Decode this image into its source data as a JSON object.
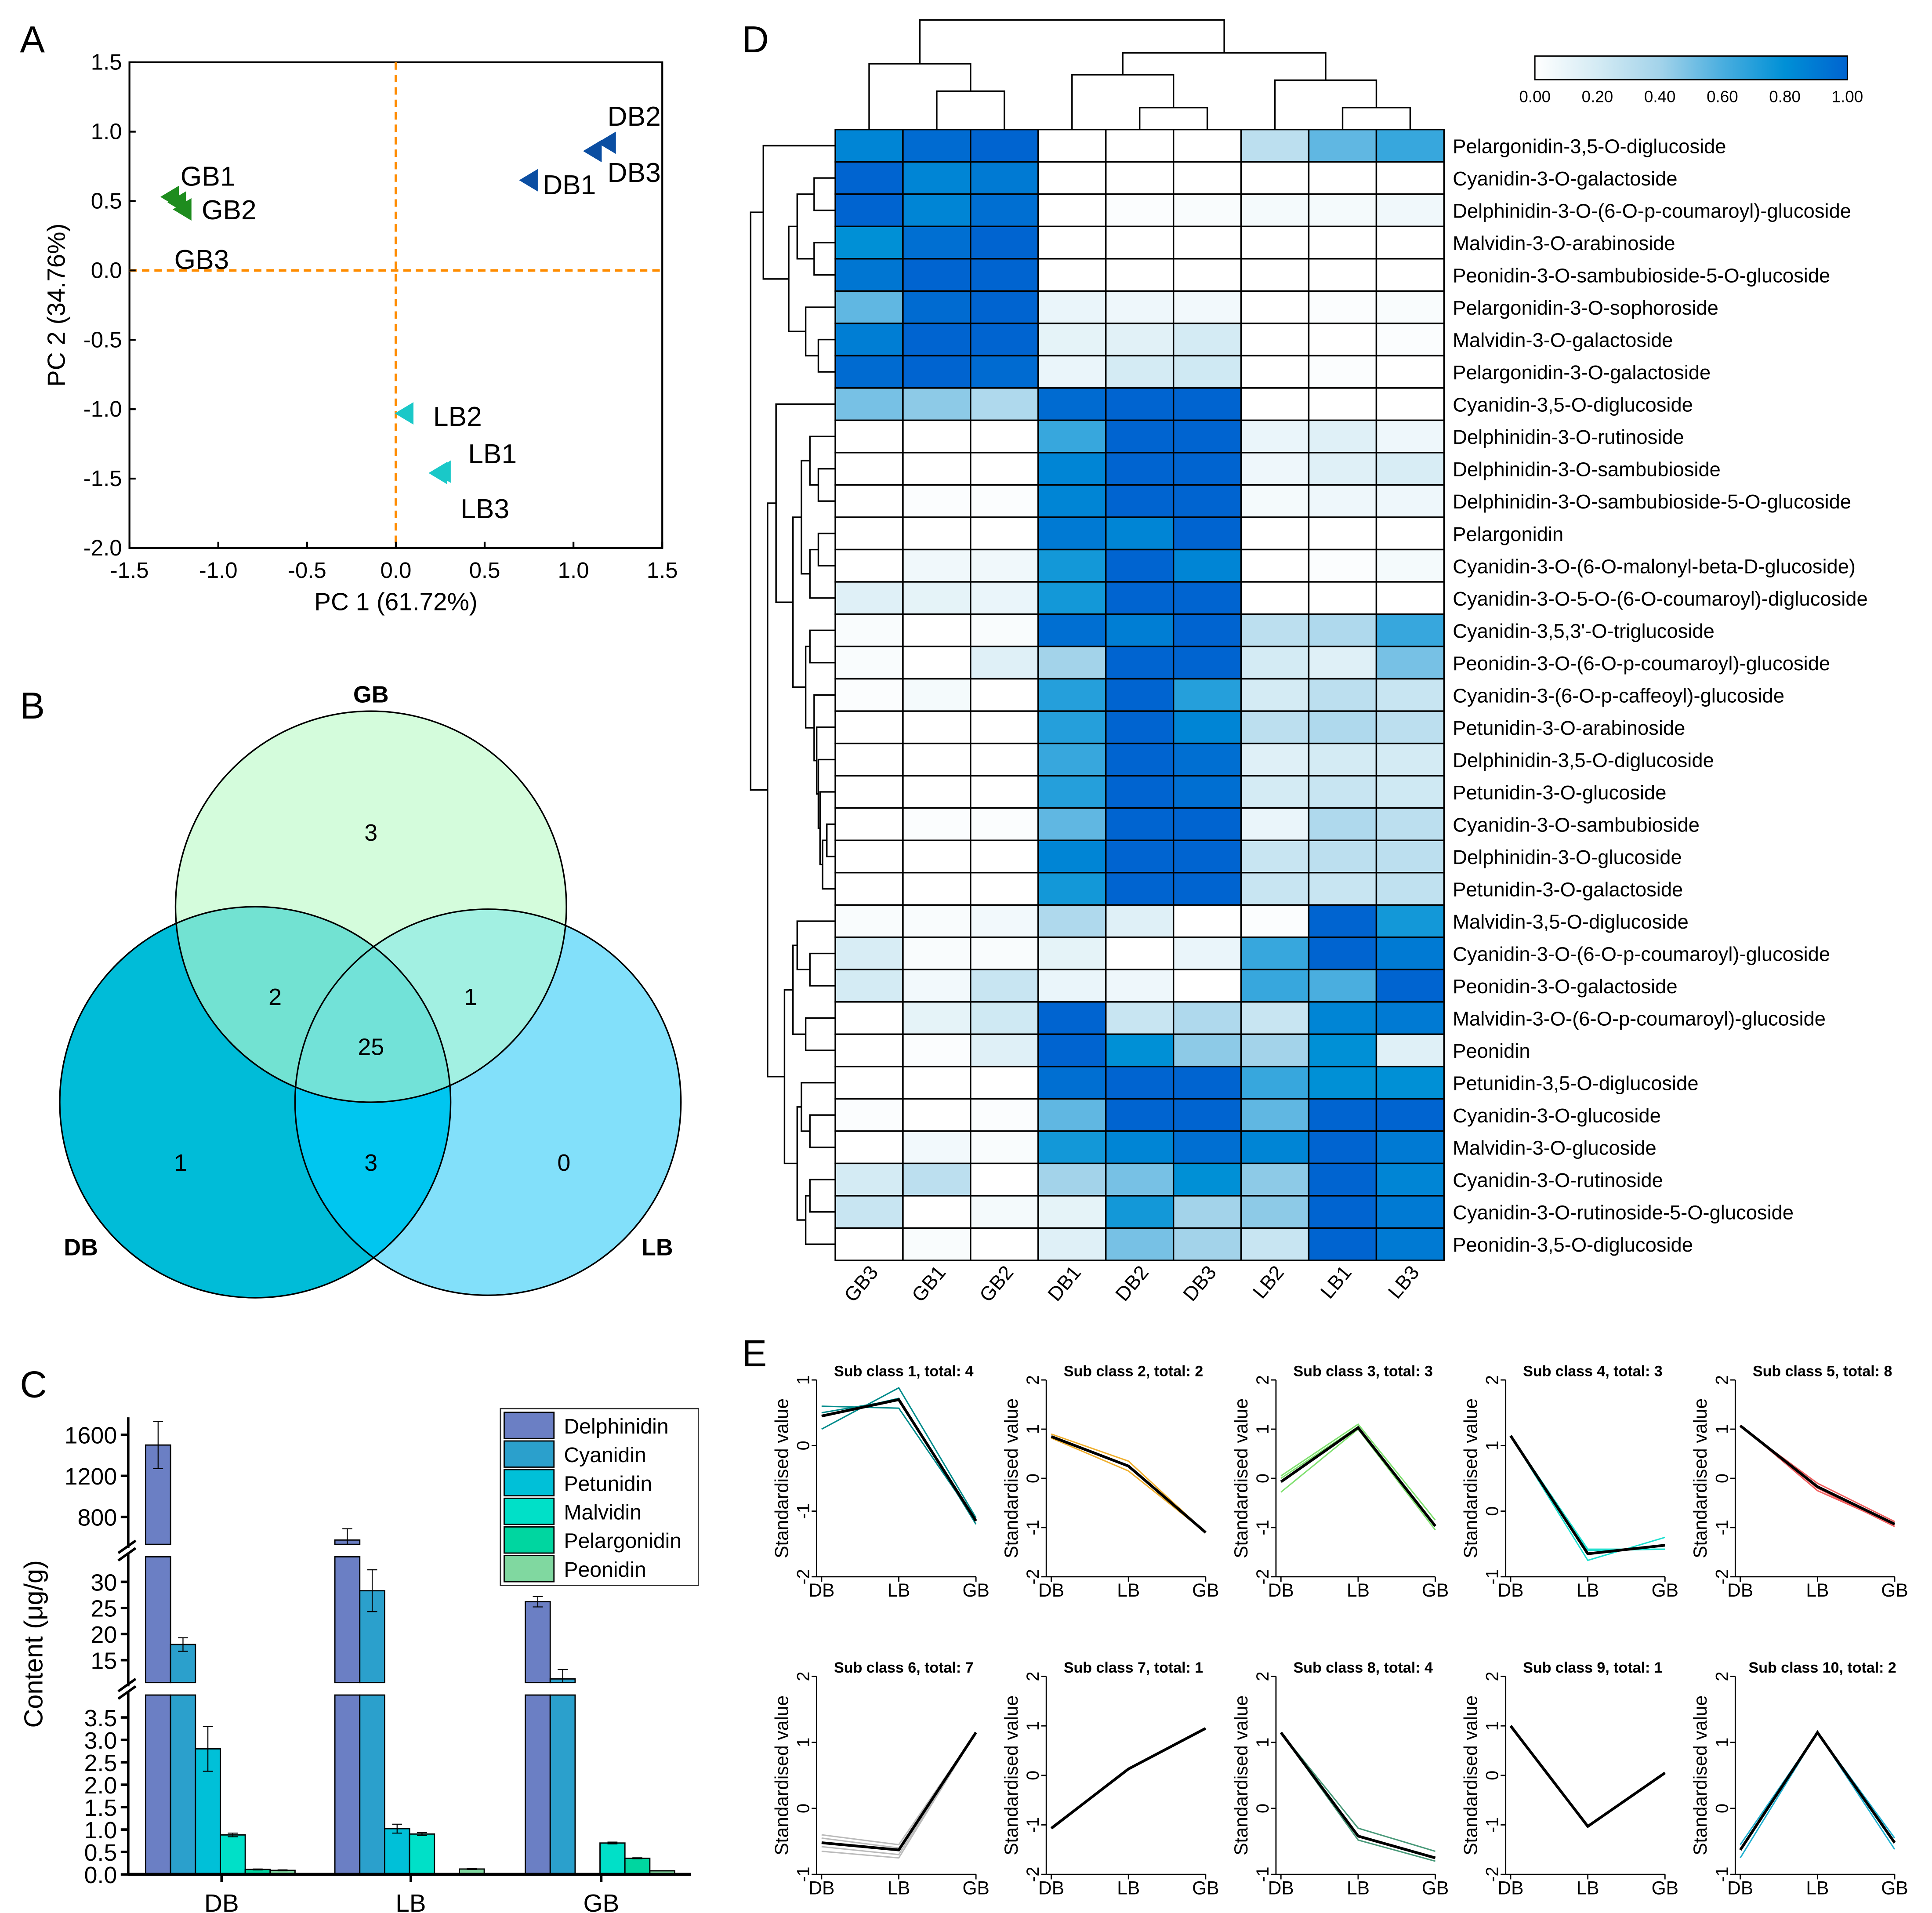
{
  "figure_labels": [
    "A",
    "B",
    "C",
    "D",
    "E"
  ],
  "chart_data": [
    {
      "panel": "A",
      "type": "scatter",
      "xlabel": "PC 1 (61.72%)",
      "ylabel": "PC 2 (34.76%)",
      "xlim": [
        -1.5,
        1.5
      ],
      "ylim": [
        -2.0,
        1.5
      ],
      "xticks": [
        -1.5,
        -1.0,
        -0.5,
        0.0,
        0.5,
        1.0,
        1.5
      ],
      "xtick_labels": [
        "-1.5",
        "-1.0",
        "-0.5",
        "0.0",
        "0.5",
        "1.0",
        "1.5"
      ],
      "yticks": [
        1.5,
        1.0,
        0.5,
        0.0,
        -0.5,
        -1.0,
        -1.5,
        -2.0
      ],
      "ytick_labels": [
        "1.5",
        "1.0",
        "0.5",
        "0.0",
        "-0.5",
        "-1.0",
        "-1.5",
        "-2.0"
      ],
      "reference_lines": {
        "x": 0,
        "y": 0,
        "color": "#ff8c00"
      },
      "series": [
        {
          "name": "GB",
          "color": "#1e8c1e",
          "points": [
            {
              "label": "GB1",
              "x": -1.27,
              "y": 0.53
            },
            {
              "label": "GB2",
              "x": -1.23,
              "y": 0.49
            },
            {
              "label": "GB3",
              "x": -1.2,
              "y": 0.44
            }
          ]
        },
        {
          "name": "DB",
          "color": "#0b4ea2",
          "points": [
            {
              "label": "DB1",
              "x": 0.75,
              "y": 0.65
            },
            {
              "label": "DB2",
              "x": 1.19,
              "y": 0.92
            },
            {
              "label": "DB3",
              "x": 1.11,
              "y": 0.86
            }
          ]
        },
        {
          "name": "LB",
          "color": "#1ac8c8",
          "points": [
            {
              "label": "LB2",
              "x": 0.05,
              "y": -1.03
            },
            {
              "label": "LB1",
              "x": 0.26,
              "y": -1.45
            },
            {
              "label": "LB3",
              "x": 0.24,
              "y": -1.46
            }
          ]
        }
      ]
    },
    {
      "panel": "B",
      "type": "venn",
      "sets": [
        {
          "name": "GB",
          "color": "#d4fcdc"
        },
        {
          "name": "DB",
          "color": "#00bcd8"
        },
        {
          "name": "LB",
          "color": "#82e0fa"
        }
      ],
      "regions": {
        "GB_only": "3",
        "DB_only": "1",
        "LB_only": "0",
        "GB_DB": "2",
        "GB_LB": "1",
        "DB_LB": "3",
        "GB_DB_LB": "25"
      }
    },
    {
      "panel": "C",
      "type": "bar",
      "ylabel": "Content (μg/g)",
      "categories": [
        "DB",
        "LB",
        "GB"
      ],
      "axis_segments": [
        {
          "range": [
            0,
            4
          ],
          "ticks": [
            "0.0",
            "0.5",
            "1.0",
            "1.5",
            "2.0",
            "2.5",
            "3.0",
            "3.5"
          ]
        },
        {
          "range": [
            10.7,
            34.8
          ],
          "ticks": [
            "15",
            "20",
            "25",
            "30"
          ]
        },
        {
          "range": [
            533,
            1770
          ],
          "ticks": [
            "800",
            "1200",
            "1600"
          ]
        }
      ],
      "legend_position": "top-right",
      "series": [
        {
          "name": "Delphinidin",
          "color": "#6b7fc4",
          "values": [
            1500,
            575,
            26.2
          ],
          "errors": [
            230,
            110,
            1.0
          ]
        },
        {
          "name": "Cyanidin",
          "color": "#2ba0cc",
          "values": [
            18.0,
            28.3,
            11.4
          ],
          "errors": [
            1.3,
            4.0,
            1.8
          ]
        },
        {
          "name": "Petunidin",
          "color": "#00c0d8",
          "values": [
            2.8,
            1.02,
            0
          ],
          "errors": [
            0.5,
            0.1,
            0
          ]
        },
        {
          "name": "Malvidin",
          "color": "#00e0c8",
          "values": [
            0.88,
            0.9,
            0.7
          ],
          "errors": [
            0.04,
            0.03,
            0.02
          ]
        },
        {
          "name": "Pelargonidin",
          "color": "#00d6a0",
          "values": [
            0.11,
            0.01,
            0.36
          ],
          "errors": [
            0.01,
            0,
            0.01
          ]
        },
        {
          "name": "Peonidin",
          "color": "#80d8a0",
          "values": [
            0.09,
            0.12,
            0.08
          ],
          "errors": [
            0.01,
            0.01,
            0
          ]
        }
      ]
    },
    {
      "panel": "D",
      "type": "heatmap",
      "columns": [
        "GB3",
        "GB1",
        "GB2",
        "DB1",
        "DB2",
        "DB3",
        "LB2",
        "LB1",
        "LB3"
      ],
      "colorbar": {
        "range": [
          0,
          1
        ],
        "ticks": [
          "0.00",
          "0.20",
          "0.40",
          "0.60",
          "0.80",
          "1.00"
        ],
        "low_color": "#ffffff",
        "high_color": "#0064d0"
      },
      "rows": [
        "Pelargonidin-3,5-O-diglucoside",
        "Cyanidin-3-O-galactoside",
        "Delphinidin-3-O-(6-O-p-coumaroyl)-glucoside",
        "Malvidin-3-O-arabinoside",
        "Peonidin-3-O-sambubioside-5-O-glucoside",
        "Pelargonidin-3-O-sophoroside",
        "Malvidin-3-O-galactoside",
        "Pelargonidin-3-O-galactoside",
        "Cyanidin-3,5-O-diglucoside",
        "Delphinidin-3-O-rutinoside",
        "Delphinidin-3-O-sambubioside",
        "Delphinidin-3-O-sambubioside-5-O-glucoside",
        "Pelargonidin",
        "Cyanidin-3-O-(6-O-malonyl-beta-D-glucoside)",
        "Cyanidin-3-O-5-O-(6-O-coumaroyl)-diglucoside",
        "Cyanidin-3,5,3'-O-triglucoside",
        "Peonidin-3-O-(6-O-p-coumaroyl)-glucoside",
        "Cyanidin-3-(6-O-p-caffeoyl)-glucoside",
        "Petunidin-3-O-arabinoside",
        "Delphinidin-3,5-O-diglucoside",
        "Petunidin-3-O-glucoside",
        "Cyanidin-3-O-sambubioside",
        "Delphinidin-3-O-glucoside",
        "Petunidin-3-O-galactoside",
        "Malvidin-3,5-O-diglucoside",
        "Cyanidin-3-O-(6-O-p-coumaroyl)-glucoside",
        "Peonidin-3-O-galactoside",
        "Malvidin-3-O-(6-O-p-coumaroyl)-glucoside",
        "Peonidin",
        "Petunidin-3,5-O-diglucoside",
        "Cyanidin-3-O-glucoside",
        "Malvidin-3-O-glucoside",
        "Cyanidin-3-O-rutinoside",
        "Cyanidin-3-O-rutinoside-5-O-glucoside",
        "Peonidin-3,5-O-diglucoside"
      ],
      "values": [
        [
          0.85,
          0.97,
          1,
          0,
          0,
          0,
          0.3,
          0.55,
          0.65
        ],
        [
          1,
          0.85,
          0.9,
          0,
          0,
          0,
          0,
          0,
          0
        ],
        [
          1,
          0.85,
          0.95,
          0,
          0.02,
          0.03,
          0.05,
          0.05,
          0.07
        ],
        [
          0.8,
          0.95,
          1,
          0,
          0,
          0,
          0,
          0,
          0
        ],
        [
          0.92,
          1,
          1,
          0,
          0,
          0,
          0,
          0,
          0
        ],
        [
          0.55,
          0.97,
          1,
          0.1,
          0.08,
          0.06,
          0,
          0.02,
          0.03
        ],
        [
          0.88,
          1,
          1,
          0.12,
          0.14,
          0.2,
          0,
          0,
          0.02
        ],
        [
          0.97,
          1,
          0.97,
          0.1,
          0.2,
          0.22,
          0,
          0.02,
          0
        ],
        [
          0.5,
          0.45,
          0.35,
          0.97,
          1,
          1,
          0,
          0,
          0
        ],
        [
          0,
          0,
          0,
          0.65,
          1,
          1,
          0.1,
          0.15,
          0.08
        ],
        [
          0,
          0,
          0,
          0.85,
          1,
          1,
          0.08,
          0.15,
          0.18
        ],
        [
          0,
          0.02,
          0.02,
          0.85,
          1,
          1,
          0.05,
          0.08,
          0.08
        ],
        [
          0,
          0,
          0,
          0.9,
          0.85,
          1,
          0,
          0,
          0
        ],
        [
          0,
          0.07,
          0.07,
          0.75,
          1,
          0.85,
          0,
          0.02,
          0.05
        ],
        [
          0.15,
          0.12,
          0.1,
          0.75,
          1,
          1,
          0,
          0,
          0
        ],
        [
          0.03,
          0,
          0.03,
          0.95,
          0.88,
          1,
          0.3,
          0.35,
          0.65
        ],
        [
          0.03,
          0,
          0.15,
          0.4,
          1,
          1,
          0.2,
          0.15,
          0.5
        ],
        [
          0.02,
          0.05,
          0,
          0.7,
          1,
          0.7,
          0.2,
          0.3,
          0.25
        ],
        [
          0,
          0,
          0,
          0.7,
          1,
          0.85,
          0.3,
          0.35,
          0.3
        ],
        [
          0,
          0,
          0,
          0.65,
          1,
          0.95,
          0.15,
          0.2,
          0.2
        ],
        [
          0,
          0,
          0,
          0.7,
          1,
          0.95,
          0.2,
          0.25,
          0.22
        ],
        [
          0,
          0.02,
          0.02,
          0.55,
          1,
          1,
          0.1,
          0.35,
          0.3
        ],
        [
          0,
          0,
          0,
          0.85,
          1,
          1,
          0.25,
          0.3,
          0.3
        ],
        [
          0,
          0,
          0,
          0.75,
          1,
          1,
          0.25,
          0.25,
          0.28
        ],
        [
          0.03,
          0.03,
          0.06,
          0.35,
          0.15,
          0,
          0.02,
          1,
          0.75
        ],
        [
          0.18,
          0.03,
          0.03,
          0.12,
          0,
          0.1,
          0.65,
          1,
          0.9
        ],
        [
          0.2,
          0.06,
          0.25,
          0.1,
          0.08,
          0,
          0.65,
          0.6,
          1
        ],
        [
          0,
          0.12,
          0.22,
          1,
          0.25,
          0.35,
          0.25,
          0.85,
          0.9
        ],
        [
          0,
          0.02,
          0.15,
          1,
          0.8,
          0.45,
          0.4,
          0.8,
          0.15
        ],
        [
          0,
          0,
          0,
          0.95,
          1,
          1,
          0.65,
          0.8,
          0.8
        ],
        [
          0.02,
          0,
          0.02,
          0.55,
          1,
          1,
          0.55,
          1,
          1
        ],
        [
          0,
          0.06,
          0.03,
          0.75,
          0.85,
          0.95,
          0.85,
          1,
          0.9
        ],
        [
          0.2,
          0.3,
          0,
          0.4,
          0.5,
          0.8,
          0.45,
          1,
          0.85
        ],
        [
          0.25,
          0,
          0.05,
          0.12,
          0.75,
          0.4,
          0.45,
          1,
          0.9
        ],
        [
          0,
          0.03,
          0,
          0.15,
          0.5,
          0.4,
          0.25,
          1,
          0.9
        ]
      ]
    },
    {
      "panel": "E",
      "type": "line",
      "x": [
        "DB",
        "LB",
        "GB"
      ],
      "ylabel": "Standardised value",
      "subplots": [
        {
          "title": "Sub class 1, total: 4",
          "ylim": [
            -2,
            1
          ],
          "yticks": [
            "-2",
            "-1",
            "0",
            "1"
          ],
          "color": "#008b8b",
          "mean": [
            0.45,
            0.7,
            -1.15
          ],
          "members": [
            [
              0.6,
              0.57,
              -1.15
            ],
            [
              0.25,
              0.88,
              -1.1
            ],
            [
              0.5,
              0.7,
              -1.15
            ],
            [
              0.45,
              0.72,
              -1.2
            ]
          ]
        },
        {
          "title": "Sub class 2, total: 2",
          "ylim": [
            -2,
            2
          ],
          "yticks": [
            "-2",
            "-1",
            "0",
            "1",
            "2"
          ],
          "color": "#f0b030",
          "mean": [
            0.85,
            0.25,
            -1.1
          ],
          "members": [
            [
              0.9,
              0.35,
              -1.1
            ],
            [
              0.82,
              0.15,
              -1.1
            ]
          ]
        },
        {
          "title": "Sub class 3, total: 3",
          "ylim": [
            -2,
            2
          ],
          "yticks": [
            "-2",
            "-1",
            "0",
            "1",
            "2"
          ],
          "color": "#80e070",
          "mean": [
            -0.07,
            1.03,
            -0.97
          ],
          "members": [
            [
              0.05,
              1.1,
              -0.85
            ],
            [
              -0.28,
              1.0,
              -1.05
            ],
            [
              0.0,
              1.05,
              -0.95
            ]
          ]
        },
        {
          "title": "Sub class 4, total: 3",
          "ylim": [
            -1,
            2
          ],
          "yticks": [
            "-1",
            "0",
            "1",
            "2"
          ],
          "color": "#20e0d0",
          "mean": [
            1.15,
            -0.65,
            -0.52
          ],
          "members": [
            [
              1.15,
              -0.75,
              -0.4
            ],
            [
              1.15,
              -0.58,
              -0.58
            ],
            [
              1.15,
              -0.6,
              -0.58
            ]
          ]
        },
        {
          "title": "Sub class 5, total: 8",
          "ylim": [
            -2,
            2
          ],
          "yticks": [
            "-2",
            "-1",
            "0",
            "1",
            "2"
          ],
          "color": "#f06060",
          "mean": [
            1.07,
            -0.17,
            -0.93
          ],
          "members": [
            [
              1.07,
              -0.2,
              -0.98
            ],
            [
              1.05,
              -0.1,
              -0.88
            ],
            [
              1.08,
              -0.25,
              -0.95
            ]
          ]
        },
        {
          "title": "Sub class 6, total: 7",
          "ylim": [
            -1,
            2
          ],
          "yticks": [
            "-1",
            "0",
            "1",
            "2"
          ],
          "color": "#bbbbbb",
          "mean": [
            -0.52,
            -0.63,
            1.15
          ],
          "members": [
            [
              -0.4,
              -0.55,
              1.15
            ],
            [
              -0.65,
              -0.75,
              1.15
            ],
            [
              -0.58,
              -0.7,
              1.15
            ],
            [
              -0.45,
              -0.6,
              1.15
            ]
          ]
        },
        {
          "title": "Sub class 7, total: 1",
          "ylim": [
            -2,
            2
          ],
          "yticks": [
            "-2",
            "-1",
            "0",
            "1",
            "2"
          ],
          "color": "#000000",
          "mean": [
            -1.07,
            0.13,
            0.95
          ],
          "members": []
        },
        {
          "title": "Sub class 8, total: 4",
          "ylim": [
            -1,
            2
          ],
          "yticks": [
            "-1",
            "0",
            "1",
            "2"
          ],
          "color": "#4a9a7a",
          "mean": [
            1.15,
            -0.42,
            -0.75
          ],
          "members": [
            [
              1.15,
              -0.3,
              -0.65
            ],
            [
              1.15,
              -0.48,
              -0.8
            ]
          ]
        },
        {
          "title": "Sub class 9, total: 1",
          "ylim": [
            -2,
            2
          ],
          "yticks": [
            "-2",
            "-1",
            "0",
            "1",
            "2"
          ],
          "color": "#000000",
          "mean": [
            1.0,
            -1.03,
            0.05
          ],
          "members": []
        },
        {
          "title": "Sub class 10, total: 2",
          "ylim": [
            -1,
            2
          ],
          "yticks": [
            "-1",
            "0",
            "1",
            "2"
          ],
          "color": "#20b0d0",
          "mean": [
            -0.63,
            1.15,
            -0.52
          ],
          "members": [
            [
              -0.55,
              1.15,
              -0.45
            ],
            [
              -0.75,
              1.15,
              -0.62
            ]
          ]
        }
      ]
    }
  ]
}
